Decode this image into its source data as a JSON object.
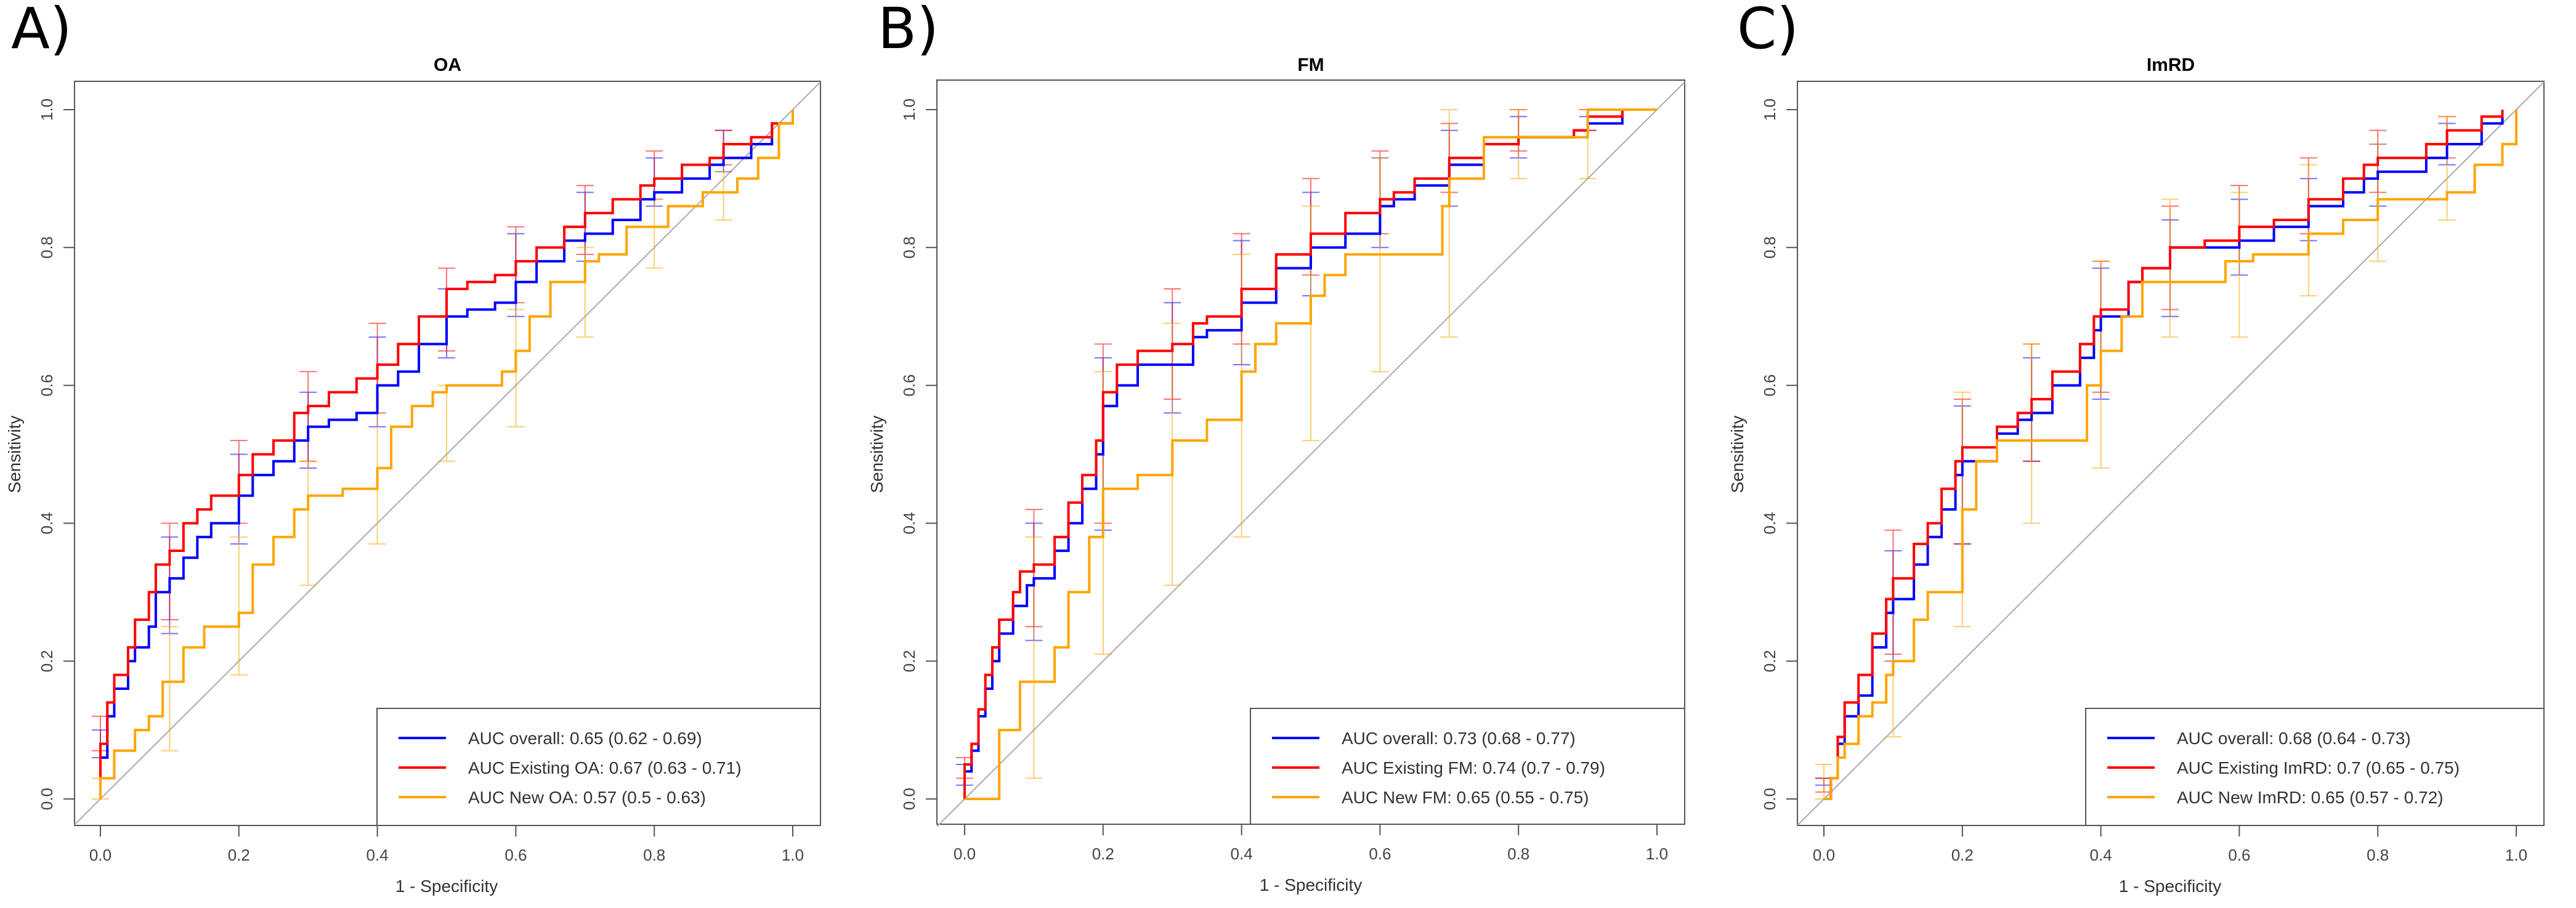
{
  "figure": {
    "panel_labels": [
      "A)",
      "B)",
      "C)"
    ]
  },
  "chart_data": [
    {
      "type": "line",
      "panel_label": "A)",
      "title": "OA",
      "xlabel": "1 - Specificity",
      "ylabel": "Sensitivity",
      "xlim": [
        0,
        1
      ],
      "ylim": [
        0,
        1
      ],
      "x_ticks": [
        "0.0",
        "0.2",
        "0.4",
        "0.6",
        "0.8",
        "1.0"
      ],
      "y_ticks": [
        "0.0",
        "0.2",
        "0.4",
        "0.6",
        "0.8",
        "1.0"
      ],
      "reference_line": "diagonal",
      "legend_position": "bottom-right",
      "series": [
        {
          "name": "AUC overall: 0.65 (0.62 - 0.69)",
          "color": "#0000ff",
          "x": [
            0,
            0,
            0.01,
            0.02,
            0.04,
            0.05,
            0.07,
            0.08,
            0.1,
            0.12,
            0.14,
            0.16,
            0.2,
            0.22,
            0.25,
            0.28,
            0.3,
            0.33,
            0.37,
            0.4,
            0.43,
            0.46,
            0.5,
            0.53,
            0.57,
            0.6,
            0.63,
            0.67,
            0.7,
            0.74,
            0.78,
            0.8,
            0.84,
            0.88,
            0.9,
            0.94,
            0.97,
            1.0
          ],
          "y": [
            0,
            0.06,
            0.12,
            0.16,
            0.2,
            0.22,
            0.25,
            0.3,
            0.32,
            0.35,
            0.38,
            0.4,
            0.44,
            0.47,
            0.49,
            0.52,
            0.54,
            0.55,
            0.56,
            0.6,
            0.62,
            0.66,
            0.7,
            0.71,
            0.72,
            0.75,
            0.78,
            0.81,
            0.82,
            0.84,
            0.87,
            0.88,
            0.9,
            0.92,
            0.93,
            0.95,
            0.98,
            1.0
          ]
        },
        {
          "name": "AUC Existing OA: 0.67 (0.63 - 0.71)",
          "color": "#ff0000",
          "x": [
            0,
            0,
            0.01,
            0.02,
            0.04,
            0.05,
            0.07,
            0.08,
            0.1,
            0.12,
            0.14,
            0.16,
            0.2,
            0.22,
            0.25,
            0.28,
            0.3,
            0.33,
            0.37,
            0.4,
            0.43,
            0.46,
            0.5,
            0.53,
            0.57,
            0.6,
            0.63,
            0.67,
            0.7,
            0.74,
            0.78,
            0.8,
            0.84,
            0.88,
            0.9,
            0.94,
            0.97,
            1.0
          ],
          "y": [
            0,
            0.08,
            0.14,
            0.18,
            0.22,
            0.26,
            0.3,
            0.34,
            0.36,
            0.4,
            0.42,
            0.44,
            0.47,
            0.5,
            0.52,
            0.56,
            0.57,
            0.59,
            0.61,
            0.63,
            0.66,
            0.7,
            0.74,
            0.75,
            0.76,
            0.78,
            0.8,
            0.83,
            0.85,
            0.87,
            0.89,
            0.9,
            0.92,
            0.93,
            0.95,
            0.96,
            0.98,
            1.0
          ]
        },
        {
          "name": "AUC New OA: 0.57 (0.5 - 0.63)",
          "color": "#ffa500",
          "x": [
            0,
            0,
            0.02,
            0.05,
            0.07,
            0.09,
            0.12,
            0.15,
            0.2,
            0.22,
            0.25,
            0.28,
            0.3,
            0.35,
            0.4,
            0.42,
            0.45,
            0.48,
            0.5,
            0.55,
            0.58,
            0.6,
            0.62,
            0.65,
            0.7,
            0.72,
            0.76,
            0.82,
            0.87,
            0.92,
            0.95,
            0.98,
            1.0
          ],
          "y": [
            0,
            0.03,
            0.07,
            0.1,
            0.12,
            0.17,
            0.22,
            0.25,
            0.27,
            0.34,
            0.38,
            0.42,
            0.44,
            0.45,
            0.48,
            0.54,
            0.57,
            0.59,
            0.6,
            0.6,
            0.62,
            0.65,
            0.7,
            0.75,
            0.78,
            0.79,
            0.83,
            0.86,
            0.88,
            0.9,
            0.93,
            0.98,
            1.0
          ]
        }
      ],
      "ci_bars": [
        {
          "series": 0,
          "x": [
            0,
            0.1,
            0.2,
            0.3,
            0.4,
            0.5,
            0.6,
            0.7,
            0.8,
            0.9
          ],
          "lo": [
            0.06,
            0.24,
            0.37,
            0.48,
            0.54,
            0.64,
            0.7,
            0.78,
            0.86,
            0.91
          ],
          "hi": [
            0.1,
            0.38,
            0.5,
            0.59,
            0.67,
            0.74,
            0.82,
            0.88,
            0.93,
            0.97
          ]
        },
        {
          "series": 1,
          "x": [
            0,
            0.1,
            0.2,
            0.3,
            0.4,
            0.5,
            0.6,
            0.7,
            0.8,
            0.9
          ],
          "lo": [
            0.07,
            0.26,
            0.4,
            0.49,
            0.56,
            0.65,
            0.72,
            0.79,
            0.87,
            0.92
          ],
          "hi": [
            0.12,
            0.4,
            0.52,
            0.62,
            0.69,
            0.77,
            0.83,
            0.89,
            0.94,
            0.97
          ]
        },
        {
          "series": 2,
          "x": [
            0,
            0.1,
            0.2,
            0.3,
            0.4,
            0.5,
            0.6,
            0.7,
            0.8,
            0.9
          ],
          "lo": [
            0.0,
            0.07,
            0.18,
            0.31,
            0.37,
            0.49,
            0.54,
            0.67,
            0.77,
            0.84
          ],
          "hi": [
            0.03,
            0.25,
            0.38,
            0.49,
            0.56,
            0.6,
            0.71,
            0.8,
            0.87,
            0.91
          ]
        }
      ]
    },
    {
      "type": "line",
      "panel_label": "B)",
      "title": "FM",
      "xlabel": "1 - Specificity",
      "ylabel": "Sensitivity",
      "xlim": [
        0,
        1
      ],
      "ylim": [
        0,
        1
      ],
      "x_ticks": [
        "0.0",
        "0.2",
        "0.4",
        "0.6",
        "0.8",
        "1.0"
      ],
      "y_ticks": [
        "0.0",
        "0.2",
        "0.4",
        "0.6",
        "0.8",
        "1.0"
      ],
      "reference_line": "diagonal",
      "legend_position": "bottom-right",
      "series": [
        {
          "name": "AUC overall: 0.73 (0.68 - 0.77)",
          "color": "#0000ff",
          "x": [
            0,
            0,
            0.01,
            0.02,
            0.03,
            0.04,
            0.05,
            0.07,
            0.09,
            0.1,
            0.13,
            0.15,
            0.17,
            0.19,
            0.2,
            0.22,
            0.25,
            0.3,
            0.33,
            0.35,
            0.4,
            0.45,
            0.5,
            0.55,
            0.6,
            0.62,
            0.65,
            0.7,
            0.75,
            0.8,
            0.88,
            0.9,
            0.95
          ],
          "y": [
            0,
            0.04,
            0.07,
            0.12,
            0.16,
            0.2,
            0.24,
            0.28,
            0.31,
            0.32,
            0.36,
            0.4,
            0.45,
            0.5,
            0.57,
            0.6,
            0.63,
            0.63,
            0.67,
            0.68,
            0.72,
            0.77,
            0.8,
            0.82,
            0.86,
            0.87,
            0.89,
            0.92,
            0.95,
            0.96,
            0.97,
            0.98,
            1.0
          ]
        },
        {
          "name": "AUC Existing FM: 0.74 (0.7 - 0.79)",
          "color": "#ff0000",
          "x": [
            0,
            0,
            0.01,
            0.02,
            0.03,
            0.04,
            0.05,
            0.07,
            0.08,
            0.1,
            0.13,
            0.15,
            0.17,
            0.19,
            0.2,
            0.22,
            0.25,
            0.3,
            0.33,
            0.35,
            0.4,
            0.45,
            0.5,
            0.55,
            0.6,
            0.62,
            0.65,
            0.7,
            0.75,
            0.8,
            0.88,
            0.9,
            0.95
          ],
          "y": [
            0,
            0.05,
            0.08,
            0.13,
            0.18,
            0.22,
            0.26,
            0.3,
            0.33,
            0.34,
            0.38,
            0.43,
            0.47,
            0.52,
            0.59,
            0.63,
            0.65,
            0.66,
            0.69,
            0.7,
            0.74,
            0.79,
            0.82,
            0.85,
            0.87,
            0.88,
            0.9,
            0.93,
            0.95,
            0.96,
            0.97,
            0.99,
            1.0
          ]
        },
        {
          "name": "AUC New FM: 0.65 (0.55 - 0.75)",
          "color": "#ffa500",
          "x": [
            0,
            0.05,
            0.05,
            0.08,
            0.08,
            0.13,
            0.15,
            0.18,
            0.2,
            0.25,
            0.3,
            0.35,
            0.4,
            0.42,
            0.45,
            0.5,
            0.52,
            0.55,
            0.65,
            0.69,
            0.7,
            0.75,
            0.8,
            0.88,
            0.9,
            1.0
          ],
          "y": [
            0,
            0,
            0.1,
            0.12,
            0.17,
            0.22,
            0.3,
            0.38,
            0.45,
            0.47,
            0.52,
            0.55,
            0.62,
            0.66,
            0.69,
            0.73,
            0.76,
            0.79,
            0.79,
            0.86,
            0.9,
            0.96,
            0.96,
            0.96,
            1.0,
            1.0
          ]
        }
      ],
      "ci_bars": [
        {
          "series": 0,
          "x": [
            0,
            0.1,
            0.2,
            0.3,
            0.4,
            0.5,
            0.6,
            0.7,
            0.8,
            0.9
          ],
          "lo": [
            0.02,
            0.23,
            0.39,
            0.56,
            0.63,
            0.73,
            0.8,
            0.86,
            0.93,
            0.97
          ],
          "hi": [
            0.05,
            0.4,
            0.64,
            0.72,
            0.81,
            0.88,
            0.93,
            0.97,
            0.99,
            0.99
          ]
        },
        {
          "series": 1,
          "x": [
            0,
            0.1,
            0.2,
            0.3,
            0.4,
            0.5,
            0.6,
            0.7,
            0.8,
            0.9
          ],
          "lo": [
            0.03,
            0.25,
            0.4,
            0.58,
            0.66,
            0.76,
            0.82,
            0.88,
            0.94,
            0.97
          ],
          "hi": [
            0.06,
            0.42,
            0.66,
            0.74,
            0.82,
            0.9,
            0.94,
            0.98,
            1.0,
            1.0
          ]
        },
        {
          "series": 2,
          "x": [
            0.1,
            0.2,
            0.3,
            0.4,
            0.5,
            0.6,
            0.7,
            0.8,
            0.9
          ],
          "lo": [
            0.03,
            0.21,
            0.31,
            0.38,
            0.52,
            0.62,
            0.67,
            0.9,
            0.9
          ],
          "hi": [
            0.38,
            0.62,
            0.69,
            0.79,
            0.86,
            0.93,
            1.0,
            1.0,
            1.0
          ]
        }
      ]
    },
    {
      "type": "line",
      "panel_label": "C)",
      "title": "ImRD",
      "xlabel": "1 - Specificity",
      "ylabel": "Sensitivity",
      "xlim": [
        0,
        1
      ],
      "ylim": [
        0,
        1
      ],
      "x_ticks": [
        "0.0",
        "0.2",
        "0.4",
        "0.6",
        "0.8",
        "1.0"
      ],
      "y_ticks": [
        "0.0",
        "0.2",
        "0.4",
        "0.6",
        "0.8",
        "1.0"
      ],
      "reference_line": "diagonal",
      "legend_position": "bottom-right",
      "series": [
        {
          "name": "AUC overall: 0.68 (0.64 - 0.73)",
          "color": "#0000ff",
          "x": [
            0,
            0.01,
            0.02,
            0.03,
            0.05,
            0.07,
            0.09,
            0.1,
            0.13,
            0.15,
            0.17,
            0.19,
            0.2,
            0.25,
            0.28,
            0.3,
            0.33,
            0.37,
            0.39,
            0.4,
            0.44,
            0.46,
            0.5,
            0.55,
            0.6,
            0.65,
            0.7,
            0.75,
            0.78,
            0.8,
            0.87,
            0.9,
            0.95,
            0.98
          ],
          "y": [
            0,
            0.03,
            0.08,
            0.12,
            0.15,
            0.22,
            0.27,
            0.29,
            0.34,
            0.38,
            0.42,
            0.47,
            0.49,
            0.53,
            0.55,
            0.56,
            0.6,
            0.64,
            0.68,
            0.7,
            0.75,
            0.77,
            0.8,
            0.8,
            0.81,
            0.83,
            0.86,
            0.88,
            0.9,
            0.91,
            0.93,
            0.95,
            0.98,
            0.99
          ]
        },
        {
          "name": "AUC Existing ImRD: 0.7 (0.65 - 0.75)",
          "color": "#ff0000",
          "x": [
            0,
            0.01,
            0.02,
            0.03,
            0.05,
            0.07,
            0.09,
            0.1,
            0.13,
            0.15,
            0.17,
            0.19,
            0.2,
            0.25,
            0.28,
            0.3,
            0.33,
            0.37,
            0.39,
            0.4,
            0.44,
            0.46,
            0.5,
            0.55,
            0.6,
            0.65,
            0.7,
            0.75,
            0.78,
            0.8,
            0.87,
            0.9,
            0.95,
            0.98
          ],
          "y": [
            0,
            0.03,
            0.09,
            0.14,
            0.18,
            0.24,
            0.29,
            0.32,
            0.37,
            0.4,
            0.45,
            0.49,
            0.51,
            0.54,
            0.56,
            0.58,
            0.62,
            0.66,
            0.7,
            0.71,
            0.75,
            0.77,
            0.8,
            0.81,
            0.83,
            0.84,
            0.87,
            0.9,
            0.92,
            0.93,
            0.95,
            0.97,
            0.99,
            1.0
          ]
        },
        {
          "name": "AUC New ImRD: 0.65 (0.57 - 0.72)",
          "color": "#ffa500",
          "x": [
            0,
            0.01,
            0.02,
            0.03,
            0.05,
            0.07,
            0.09,
            0.1,
            0.13,
            0.15,
            0.2,
            0.22,
            0.25,
            0.35,
            0.38,
            0.4,
            0.43,
            0.46,
            0.58,
            0.62,
            0.7,
            0.75,
            0.8,
            0.9,
            0.94,
            0.98,
            1.0
          ],
          "y": [
            0,
            0.03,
            0.06,
            0.08,
            0.12,
            0.14,
            0.18,
            0.2,
            0.26,
            0.3,
            0.42,
            0.49,
            0.52,
            0.52,
            0.6,
            0.65,
            0.7,
            0.75,
            0.78,
            0.79,
            0.82,
            0.84,
            0.87,
            0.88,
            0.92,
            0.95,
            1.0
          ]
        }
      ],
      "ci_bars": [
        {
          "series": 0,
          "x": [
            0,
            0.1,
            0.2,
            0.3,
            0.4,
            0.5,
            0.6,
            0.7,
            0.8,
            0.9
          ],
          "lo": [
            0.02,
            0.2,
            0.37,
            0.49,
            0.58,
            0.7,
            0.76,
            0.81,
            0.86,
            0.92
          ],
          "hi": [
            0.03,
            0.36,
            0.57,
            0.64,
            0.77,
            0.84,
            0.87,
            0.9,
            0.95,
            0.98
          ]
        },
        {
          "series": 1,
          "x": [
            0,
            0.1,
            0.2,
            0.3,
            0.4,
            0.5,
            0.6,
            0.7,
            0.8,
            0.9
          ],
          "lo": [
            0.01,
            0.21,
            0.37,
            0.49,
            0.59,
            0.71,
            0.78,
            0.82,
            0.88,
            0.93
          ],
          "hi": [
            0.03,
            0.39,
            0.58,
            0.66,
            0.78,
            0.86,
            0.89,
            0.93,
            0.97,
            0.99
          ]
        },
        {
          "series": 2,
          "x": [
            0,
            0.1,
            0.2,
            0.3,
            0.4,
            0.5,
            0.6,
            0.7,
            0.8,
            0.9
          ],
          "lo": [
            0.0,
            0.09,
            0.25,
            0.4,
            0.48,
            0.67,
            0.67,
            0.73,
            0.78,
            0.84
          ],
          "hi": [
            0.05,
            0.2,
            0.59,
            0.66,
            0.78,
            0.87,
            0.88,
            0.92,
            0.95,
            0.99
          ]
        }
      ]
    }
  ]
}
